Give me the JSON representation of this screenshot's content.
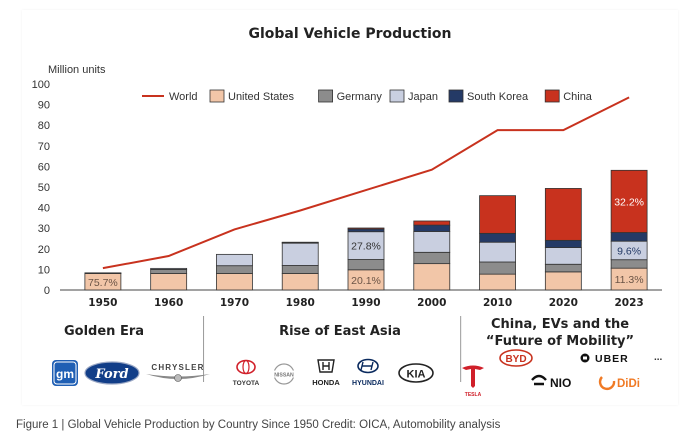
{
  "chart_data": {
    "type": "bar",
    "stacked": true,
    "title": "Global Vehicle Production",
    "ylabel": "Million units",
    "ylim": [
      0,
      100
    ],
    "yticks": [
      0,
      10,
      20,
      30,
      40,
      50,
      60,
      70,
      80,
      90,
      100
    ],
    "categories": [
      "1950",
      "1960",
      "1970",
      "1980",
      "1990",
      "2000",
      "2010",
      "2020",
      "2023"
    ],
    "grid": false,
    "legend_position": "top",
    "series": [
      {
        "name": "United States",
        "color": "#F2C6A8",
        "values": [
          8,
          8,
          8,
          8,
          9.8,
          12.8,
          7.7,
          8.8,
          10.6
        ]
      },
      {
        "name": "Germany",
        "color": "#8C8C8C",
        "values": [
          0.3,
          2.0,
          3.8,
          3.9,
          5,
          5.5,
          5.9,
          3.7,
          4.1
        ]
      },
      {
        "name": "Japan",
        "color": "#C9CFE0",
        "values": [
          0.03,
          0.5,
          5.5,
          11,
          13.5,
          10.1,
          9.6,
          8.1,
          9
        ]
      },
      {
        "name": "South Korea",
        "color": "#243A66",
        "values": [
          0,
          0,
          0,
          0.1,
          1.3,
          3.1,
          4.3,
          3.5,
          4.2
        ]
      },
      {
        "name": "China",
        "color": "#C8321E",
        "values": [
          0,
          0,
          0,
          0.2,
          0.5,
          2,
          18.3,
          25.2,
          30.2
        ]
      }
    ],
    "line_series": {
      "name": "World",
      "color": "#C8321E",
      "values": [
        10.6,
        16.5,
        29.4,
        38.6,
        48.5,
        58.4,
        77.6,
        77.6,
        93.5
      ]
    },
    "annotations": [
      {
        "category": "1950",
        "text": "75.7%",
        "color": "#6b5446"
      },
      {
        "category": "1990",
        "text": "27.8%",
        "color": "#333333"
      },
      {
        "category": "1990",
        "text": "20.1%",
        "color": "#6b5446"
      },
      {
        "category": "2023",
        "text": "32.2%",
        "color": "#ffffff"
      },
      {
        "category": "2023",
        "text": "9.6%",
        "color": "#243A66"
      },
      {
        "category": "2023",
        "text": "11.3%",
        "color": "#6b5446"
      }
    ],
    "eras": [
      {
        "label": "Golden Era"
      },
      {
        "label": "Rise of East Asia"
      },
      {
        "label_line1": "China, EVs and the",
        "label_line2": "“Future of Mobility”"
      }
    ]
  },
  "logos": {
    "gm": "gm",
    "ford": "Ford",
    "chrysler": "CHRYSLER",
    "toyota": "TOYOTA",
    "nissan": "NISSAN",
    "honda": "HONDA",
    "hyundai": "HYUNDAI",
    "kia": "KIA",
    "tesla": "TESLA",
    "byd": "BYD",
    "uber": "UBER",
    "nio": "NIO",
    "didi": "DiDi",
    "more": "..."
  },
  "caption": "Figure 1 | Global Vehicle Production by Country Since 1950 Credit: OICA, Automobility analysis"
}
